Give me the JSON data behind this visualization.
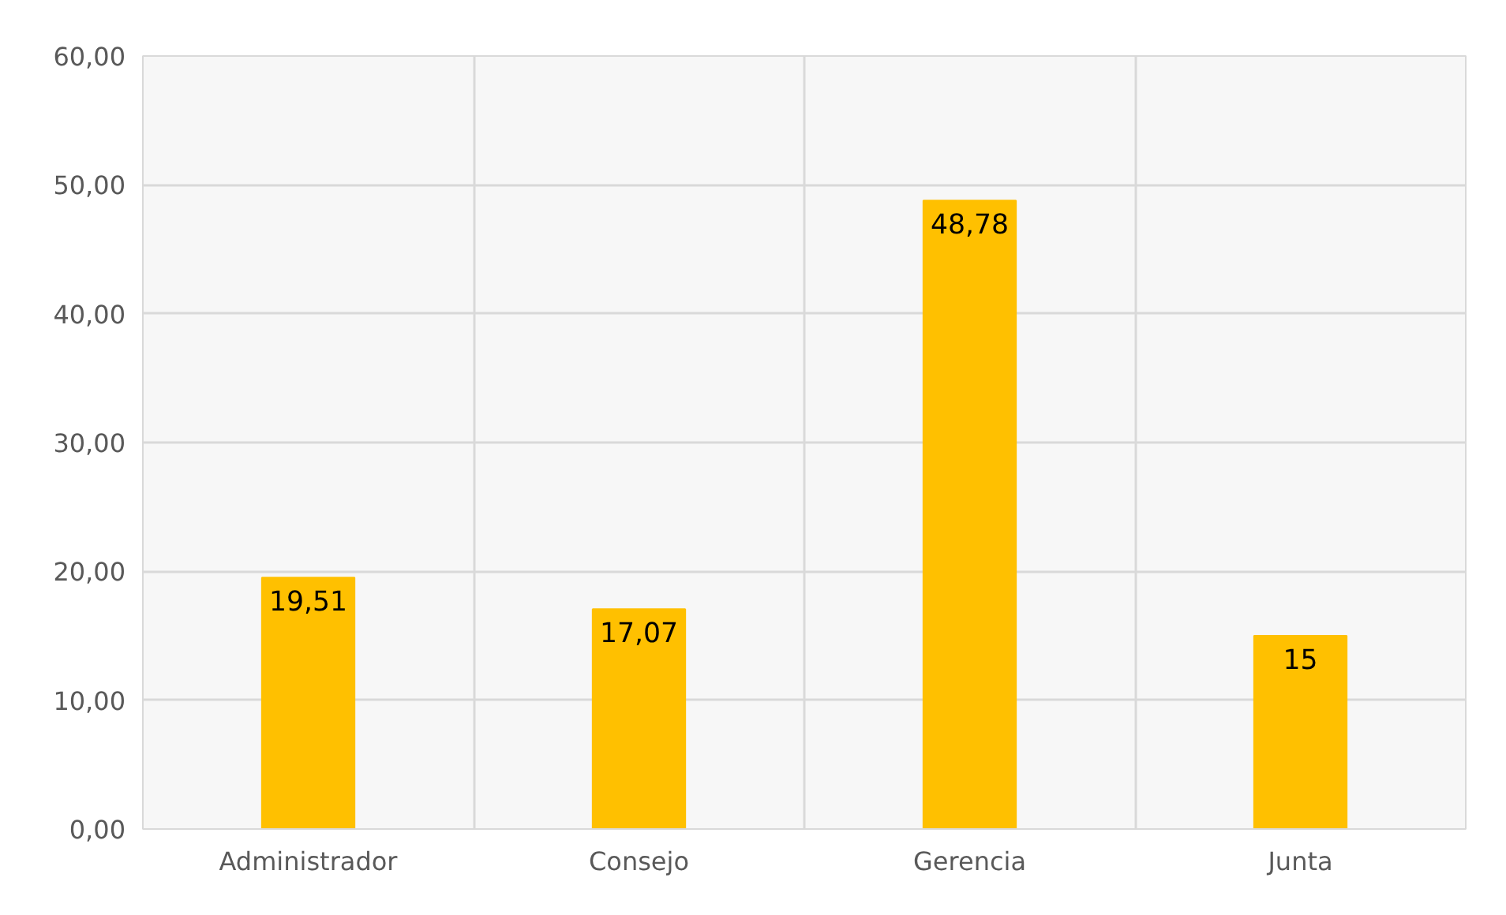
{
  "chart_data": {
    "type": "bar",
    "categories": [
      "Administrador",
      "Consejo",
      "Gerencia",
      "Junta"
    ],
    "values": [
      19.51,
      17.07,
      48.78,
      15
    ],
    "value_labels": [
      "19,51",
      "17,07",
      "48,78",
      "15"
    ],
    "color": "#ffc000",
    "ylim": [
      0,
      60
    ],
    "yticks": [
      {
        "value": 0,
        "label": "0,00"
      },
      {
        "value": 10,
        "label": "10,00"
      },
      {
        "value": 20,
        "label": "20,00"
      },
      {
        "value": 30,
        "label": "30,00"
      },
      {
        "value": 40,
        "label": "40,00"
      },
      {
        "value": 50,
        "label": "50,00"
      },
      {
        "value": 60,
        "label": "60,00"
      }
    ],
    "grid": true
  }
}
